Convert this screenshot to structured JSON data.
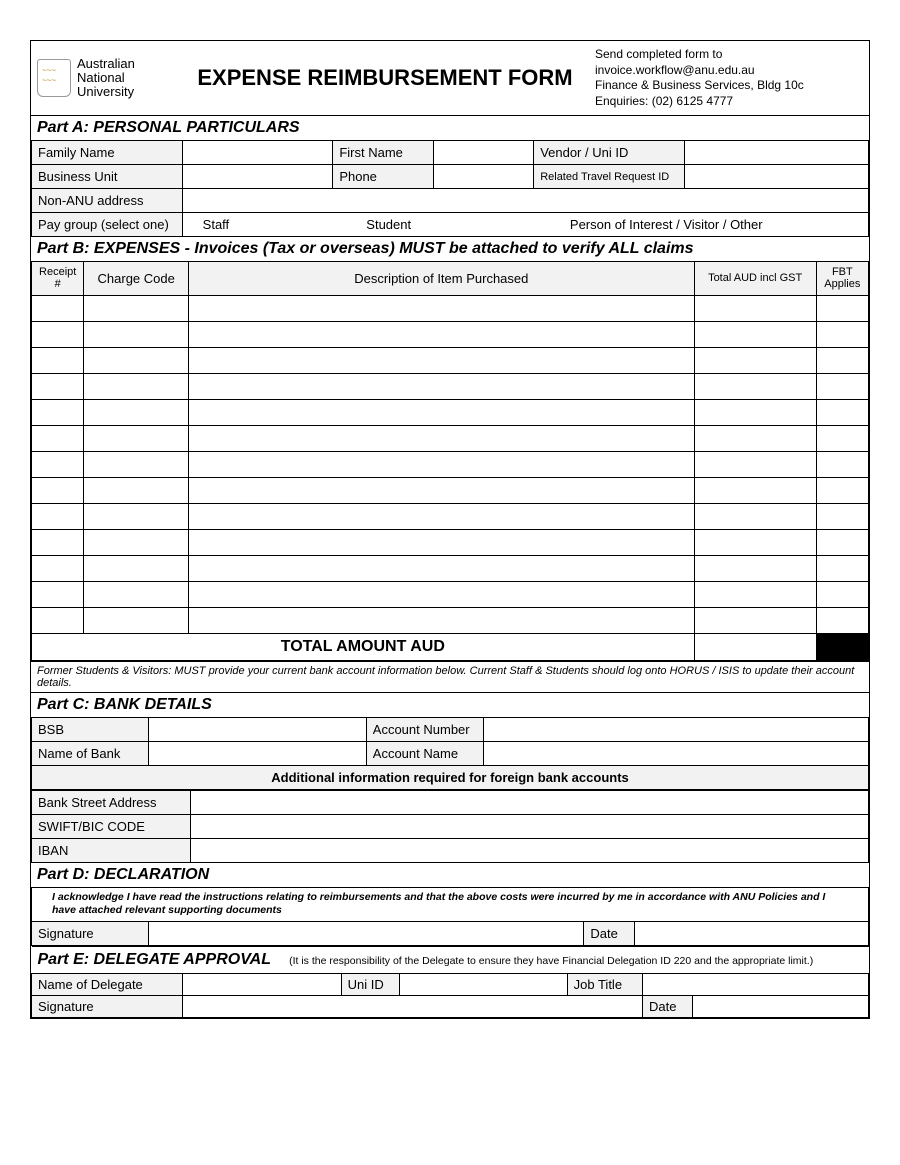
{
  "header": {
    "university_line1": "Australian",
    "university_line2": "National",
    "university_line3": "University",
    "title": "EXPENSE REIMBURSEMENT FORM",
    "submit_line1": "Send completed form to invoice.workflow@anu.edu.au",
    "submit_line2": "Finance & Business Services, Bldg 10c",
    "submit_line3": "Enquiries: (02) 6125 4777"
  },
  "partA": {
    "title": "Part A: PERSONAL PARTICULARS",
    "family_name": "Family Name",
    "first_name": "First Name",
    "vendor_id": "Vendor  /  Uni ID",
    "business_unit": "Business Unit",
    "phone": "Phone",
    "travel_request": "Related Travel Request ID",
    "non_anu": "Non-ANU address",
    "pay_group": "Pay group (select one)",
    "opt_staff": "Staff",
    "opt_student": "Student",
    "opt_other": "Person of Interest / Visitor / Other"
  },
  "partB": {
    "title": "Part B: EXPENSES - Invoices (Tax or overseas) MUST be attached to verify ALL claims",
    "col_receipt": "Receipt #",
    "col_charge": "Charge Code",
    "col_desc": "Description of Item Purchased",
    "col_total": "Total AUD incl GST",
    "col_fbt": "FBT Applies",
    "row_count": 13,
    "total_label": "TOTAL AMOUNT AUD",
    "footnote": "Former Students & Visitors: MUST provide your current bank account information below. Current Staff & Students should log onto HORUS / ISIS to update their account details."
  },
  "partC": {
    "title": "Part C: BANK DETAILS",
    "bsb": "BSB",
    "account_number": "Account Number",
    "bank_name": "Name of Bank",
    "account_name": "Account Name",
    "foreign_header": "Additional information required for foreign bank accounts",
    "street": "Bank Street Address",
    "swift": "SWIFT/BIC CODE",
    "iban": "IBAN"
  },
  "partD": {
    "title": "Part D: DECLARATION",
    "text": "I acknowledge I have read the instructions relating to reimbursements and that the above costs were incurred by me in accordance with ANU Policies and I have attached relevant supporting documents",
    "signature": "Signature",
    "date": "Date"
  },
  "partE": {
    "title": "Part E: DELEGATE APPROVAL",
    "note": "(It is the responsibility of the Delegate to ensure they have Financial Delegation ID 220 and the appropriate limit.)",
    "delegate_name": "Name of Delegate",
    "uni_id": "Uni ID",
    "job_title": "Job Title",
    "signature": "Signature",
    "date": "Date"
  }
}
